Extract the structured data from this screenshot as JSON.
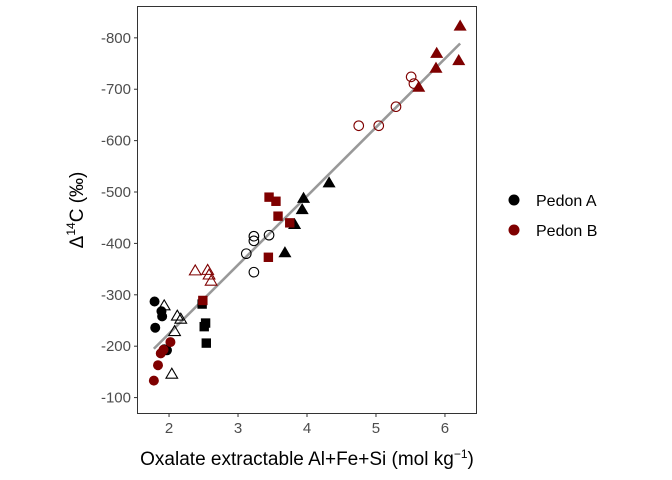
{
  "chart_data": {
    "type": "scatter",
    "title": "",
    "xlabel": {
      "main": "Oxalate extractable Al+Fe+Si (mol kg",
      "sup": "−1",
      "tail": ")"
    },
    "ylabel": {
      "delta": "Δ",
      "sup": "14",
      "main": "C (‰)"
    },
    "xlim": [
      1.55,
      6.45
    ],
    "ylim": [
      -70,
      -860
    ],
    "x_ticks": [
      2,
      3,
      4,
      5,
      6
    ],
    "x_tick_labels": [
      "2",
      "3",
      "4",
      "5",
      "6"
    ],
    "y_ticks": [
      -100,
      -200,
      -300,
      -400,
      -500,
      -600,
      -700,
      -800
    ],
    "y_tick_labels": [
      "-100",
      "-200",
      "-300",
      "-400",
      "-500",
      "-600",
      "-700",
      "-800"
    ],
    "grid": false,
    "legend_position": "right",
    "legend": [
      {
        "name": "Pedon A",
        "color": "#000000"
      },
      {
        "name": "Pedon B",
        "color": "#7f0000"
      }
    ],
    "series": [
      {
        "name": "Pedon A",
        "color": "#000000",
        "points": [
          {
            "x": 1.79,
            "y": -287,
            "shape": "circle",
            "fill": true
          },
          {
            "x": 1.8,
            "y": -236,
            "shape": "circle",
            "fill": true
          },
          {
            "x": 1.89,
            "y": -268,
            "shape": "circle",
            "fill": true
          },
          {
            "x": 1.9,
            "y": -258,
            "shape": "circle",
            "fill": true
          },
          {
            "x": 1.93,
            "y": -194,
            "shape": "circle",
            "fill": true
          },
          {
            "x": 1.97,
            "y": -192,
            "shape": "circle",
            "fill": true
          },
          {
            "x": 2.48,
            "y": -282,
            "shape": "square",
            "fill": true
          },
          {
            "x": 2.51,
            "y": -238,
            "shape": "square",
            "fill": true
          },
          {
            "x": 2.53,
            "y": -245,
            "shape": "square",
            "fill": true
          },
          {
            "x": 2.54,
            "y": -206,
            "shape": "square",
            "fill": true
          },
          {
            "x": 1.93,
            "y": -278,
            "shape": "triangle",
            "fill": false
          },
          {
            "x": 2.04,
            "y": -145,
            "shape": "triangle",
            "fill": false
          },
          {
            "x": 2.08,
            "y": -228,
            "shape": "triangle",
            "fill": false
          },
          {
            "x": 2.12,
            "y": -258,
            "shape": "triangle",
            "fill": false
          },
          {
            "x": 2.17,
            "y": -252,
            "shape": "triangle",
            "fill": false
          },
          {
            "x": 3.12,
            "y": -380,
            "shape": "circle",
            "fill": false
          },
          {
            "x": 3.23,
            "y": -405,
            "shape": "circle",
            "fill": false
          },
          {
            "x": 3.23,
            "y": -414,
            "shape": "circle",
            "fill": false
          },
          {
            "x": 3.23,
            "y": -344,
            "shape": "circle",
            "fill": false
          },
          {
            "x": 3.45,
            "y": -416,
            "shape": "circle",
            "fill": false
          },
          {
            "x": 3.68,
            "y": -381,
            "shape": "triangle",
            "fill": true
          },
          {
            "x": 3.82,
            "y": -436,
            "shape": "triangle",
            "fill": true
          },
          {
            "x": 3.93,
            "y": -465,
            "shape": "triangle",
            "fill": true
          },
          {
            "x": 3.95,
            "y": -487,
            "shape": "triangle",
            "fill": true
          },
          {
            "x": 4.32,
            "y": -517,
            "shape": "triangle",
            "fill": true
          }
        ]
      },
      {
        "name": "Pedon B",
        "color": "#7f0000",
        "points": [
          {
            "x": 1.78,
            "y": -133,
            "shape": "circle",
            "fill": true
          },
          {
            "x": 1.84,
            "y": -163,
            "shape": "circle",
            "fill": true
          },
          {
            "x": 1.88,
            "y": -186,
            "shape": "circle",
            "fill": true
          },
          {
            "x": 1.92,
            "y": -193,
            "shape": "circle",
            "fill": true
          },
          {
            "x": 2.02,
            "y": -208,
            "shape": "circle",
            "fill": true
          },
          {
            "x": 2.38,
            "y": -346,
            "shape": "triangle",
            "fill": false
          },
          {
            "x": 2.56,
            "y": -347,
            "shape": "triangle",
            "fill": false
          },
          {
            "x": 2.58,
            "y": -338,
            "shape": "triangle",
            "fill": false
          },
          {
            "x": 2.61,
            "y": -326,
            "shape": "triangle",
            "fill": false
          },
          {
            "x": 2.49,
            "y": -289,
            "shape": "square",
            "fill": true
          },
          {
            "x": 3.44,
            "y": -373,
            "shape": "square",
            "fill": true
          },
          {
            "x": 3.45,
            "y": -490,
            "shape": "square",
            "fill": true
          },
          {
            "x": 3.55,
            "y": -482,
            "shape": "square",
            "fill": true
          },
          {
            "x": 3.58,
            "y": -453,
            "shape": "square",
            "fill": true
          },
          {
            "x": 3.75,
            "y": -440,
            "shape": "square",
            "fill": true
          },
          {
            "x": 4.75,
            "y": -629,
            "shape": "circle",
            "fill": false
          },
          {
            "x": 5.04,
            "y": -629,
            "shape": "circle",
            "fill": false
          },
          {
            "x": 5.29,
            "y": -666,
            "shape": "circle",
            "fill": false
          },
          {
            "x": 5.51,
            "y": -724,
            "shape": "circle",
            "fill": false
          },
          {
            "x": 5.55,
            "y": -711,
            "shape": "circle",
            "fill": false
          },
          {
            "x": 5.62,
            "y": -703,
            "shape": "triangle",
            "fill": true
          },
          {
            "x": 5.87,
            "y": -740,
            "shape": "triangle",
            "fill": true
          },
          {
            "x": 5.88,
            "y": -769,
            "shape": "triangle",
            "fill": true
          },
          {
            "x": 6.2,
            "y": -755,
            "shape": "triangle",
            "fill": true
          },
          {
            "x": 6.22,
            "y": -822,
            "shape": "triangle",
            "fill": true
          }
        ]
      }
    ],
    "fit_line": {
      "type": "linear",
      "color": "#999999",
      "x": [
        1.78,
        6.22
      ],
      "y": [
        -195,
        -789
      ]
    }
  }
}
